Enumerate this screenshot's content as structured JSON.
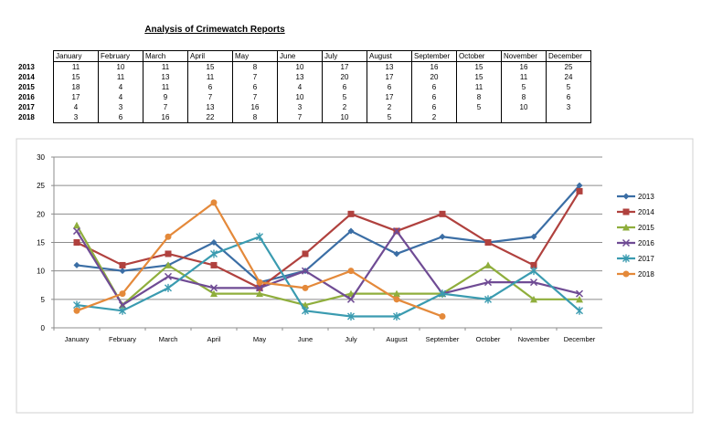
{
  "title": "Analysis of Crimewatch Reports",
  "table": {
    "months": [
      "January",
      "February",
      "March",
      "April",
      "May",
      "June",
      "July",
      "August",
      "September",
      "October",
      "November",
      "December"
    ],
    "rows": [
      {
        "year": "2013",
        "values": [
          "11",
          "10",
          "11",
          "15",
          "8",
          "10",
          "17",
          "13",
          "16",
          "15",
          "16",
          "25"
        ]
      },
      {
        "year": "2014",
        "values": [
          "15",
          "11",
          "13",
          "11",
          "7",
          "13",
          "20",
          "17",
          "20",
          "15",
          "11",
          "24"
        ]
      },
      {
        "year": "2015",
        "values": [
          "18",
          "4",
          "11",
          "6",
          "6",
          "4",
          "6",
          "6",
          "6",
          "11",
          "5",
          "5"
        ]
      },
      {
        "year": "2016",
        "values": [
          "17",
          "4",
          "9",
          "7",
          "7",
          "10",
          "5",
          "17",
          "6",
          "8",
          "8",
          "6"
        ]
      },
      {
        "year": "2017",
        "values": [
          "4",
          "3",
          "7",
          "13",
          "16",
          "3",
          "2",
          "2",
          "6",
          "5",
          "10",
          "3"
        ]
      },
      {
        "year": "2018",
        "values": [
          "3",
          "6",
          "16",
          "22",
          "8",
          "7",
          "10",
          "5",
          "2",
          "",
          "",
          ""
        ]
      }
    ]
  },
  "chart_data": {
    "type": "line",
    "categories": [
      "January",
      "February",
      "March",
      "April",
      "May",
      "June",
      "July",
      "August",
      "September",
      "October",
      "November",
      "December"
    ],
    "ylim": [
      0,
      30
    ],
    "yticks": [
      0,
      5,
      10,
      15,
      20,
      25,
      30
    ],
    "grid": true,
    "legend_position": "right",
    "series": [
      {
        "name": "2013",
        "color": "#3b6ea5",
        "marker": "diamond",
        "values": [
          11,
          10,
          11,
          15,
          8,
          10,
          17,
          13,
          16,
          15,
          16,
          25
        ]
      },
      {
        "name": "2014",
        "color": "#b0413e",
        "marker": "square",
        "values": [
          15,
          11,
          13,
          11,
          7,
          13,
          20,
          17,
          20,
          15,
          11,
          24
        ]
      },
      {
        "name": "2015",
        "color": "#8fae3c",
        "marker": "triangle",
        "values": [
          18,
          4,
          11,
          6,
          6,
          4,
          6,
          6,
          6,
          11,
          5,
          5
        ]
      },
      {
        "name": "2016",
        "color": "#6f4b94",
        "marker": "x",
        "values": [
          17,
          4,
          9,
          7,
          7,
          10,
          5,
          17,
          6,
          8,
          8,
          6
        ]
      },
      {
        "name": "2017",
        "color": "#3a9bb0",
        "marker": "star",
        "values": [
          4,
          3,
          7,
          13,
          16,
          3,
          2,
          2,
          6,
          5,
          10,
          3
        ]
      },
      {
        "name": "2018",
        "color": "#e4893a",
        "marker": "circle",
        "values": [
          3,
          6,
          16,
          22,
          8,
          7,
          10,
          5,
          2,
          null,
          null,
          null
        ]
      }
    ]
  }
}
